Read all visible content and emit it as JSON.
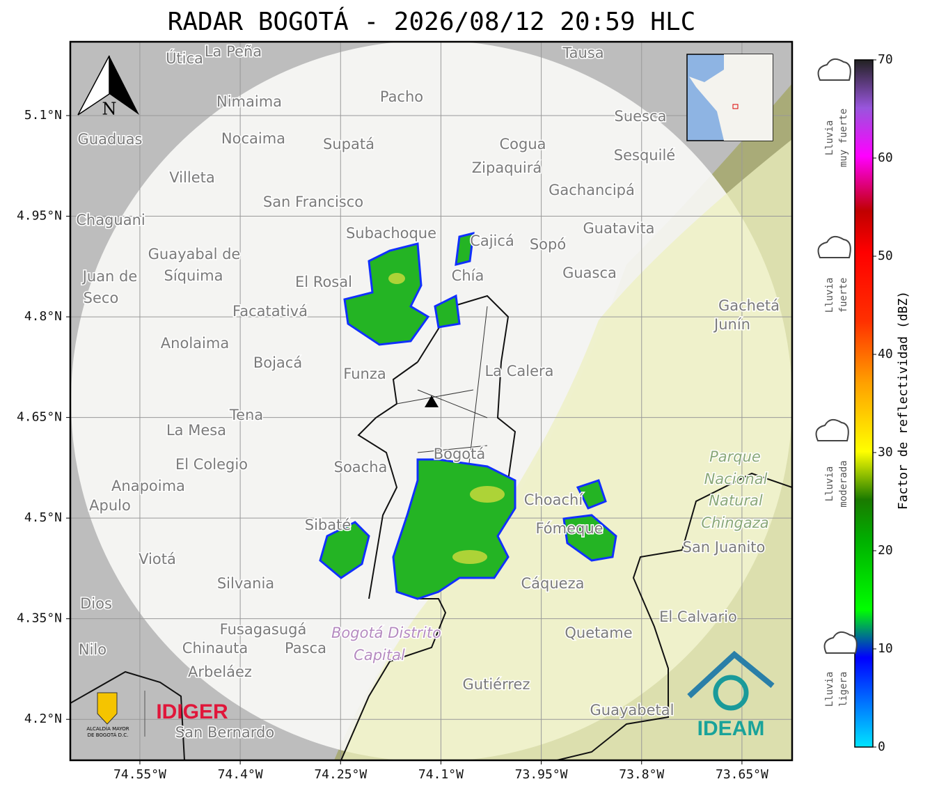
{
  "title": "RADAR BOGOTÁ - 2026/08/12 20:59 HLC",
  "map": {
    "xlim": [
      -74.654,
      -73.575
    ],
    "ylim": [
      4.139,
      5.21
    ],
    "xticks": [
      {
        "value": -74.55,
        "label": "74.55°W"
      },
      {
        "value": -74.4,
        "label": "74.4°W"
      },
      {
        "value": -74.25,
        "label": "74.25°W"
      },
      {
        "value": -74.1,
        "label": "74.1°W"
      },
      {
        "value": -73.95,
        "label": "73.95°W"
      },
      {
        "value": -73.8,
        "label": "73.8°W"
      },
      {
        "value": -73.65,
        "label": "73.65°W"
      }
    ],
    "yticks": [
      {
        "value": 5.1,
        "label": "5.1°N"
      },
      {
        "value": 4.95,
        "label": "4.95°N"
      },
      {
        "value": 4.8,
        "label": "4.8°N"
      },
      {
        "value": 4.65,
        "label": "4.65°N"
      },
      {
        "value": 4.5,
        "label": "4.5°N"
      },
      {
        "value": 4.35,
        "label": "4.35°N"
      },
      {
        "value": 4.2,
        "label": "4.2°N"
      }
    ]
  },
  "north_arrow": "N",
  "places": [
    "Útica",
    "La Peña",
    "Tausa",
    "Pacho",
    "Nimaima",
    "Guaduas",
    "Nocaima",
    "Supatá",
    "Cogua",
    "Suesca",
    "Sesquilé",
    "Zipaquirá",
    "Villeta",
    "Gachancipá",
    "San Francisco",
    "Chaguani",
    "Guatavita",
    "Subachoque",
    "Cajicá",
    "Sopó",
    "Guayabal de",
    "Síquima",
    "Juan de",
    "Seco",
    "El Rosal",
    "Chía",
    "Guasca",
    "Facatativá",
    "Gachetá",
    "Junín",
    "Anolaima",
    "Bojacá",
    "Funza",
    "La Calera",
    "Tena",
    "La Mesa",
    "Bogotá",
    "Parque",
    "Nacional",
    "Natural",
    "Chingaza",
    "Soacha",
    "El Colegio",
    "Anapoima",
    "Apulo",
    "Choachí",
    "Fómeque",
    "Sibaté",
    "San Juanito",
    "Viotá",
    "Cáqueza",
    "Silvania",
    "Dios",
    "El Calvario",
    "Fusagasugá",
    "Bogotá Distrito",
    "Capital",
    "Quetame",
    "Nilo",
    "Chinauta",
    "Pasca",
    "Arbeláez",
    "Gutiérrez",
    "Guayabetal",
    "San Bernardo"
  ],
  "colorbar": {
    "label": "Factor de reflectividad (dBZ)",
    "lim": [
      0,
      70
    ],
    "ticks": [
      0,
      10,
      20,
      30,
      40,
      50,
      60,
      70
    ]
  },
  "rain_levels": [
    [
      "Lluvia",
      "muy fuerte"
    ],
    [
      "Lluvia",
      "fuerte"
    ],
    [
      "Lluvia",
      "moderada"
    ],
    [
      "Lluvia",
      "ligera"
    ]
  ],
  "logos": {
    "alcaldia": [
      "ALCALDÍA MAYOR",
      "DE BOGOTÁ D.C."
    ],
    "idiger": "IDIGER",
    "ideam": "IDEAM"
  }
}
